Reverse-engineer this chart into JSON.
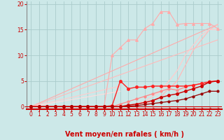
{
  "title": "",
  "xlabel": "Vent moyen/en rafales ( km/h )",
  "xlim": [
    -0.5,
    23.5
  ],
  "ylim": [
    -0.5,
    20.5
  ],
  "yticks": [
    0,
    5,
    10,
    15,
    20
  ],
  "xticks": [
    0,
    1,
    2,
    3,
    4,
    5,
    6,
    7,
    8,
    9,
    10,
    11,
    12,
    13,
    14,
    15,
    16,
    17,
    18,
    19,
    20,
    21,
    22,
    23
  ],
  "bg_color": "#cce8e8",
  "grid_color": "#aacccc",
  "axis_color": "#cc0000",
  "lines": [
    {
      "x": [
        0,
        1,
        2,
        3,
        4,
        5,
        6,
        7,
        8,
        9,
        10,
        11,
        12,
        13,
        14,
        15,
        16,
        17,
        18,
        19,
        20,
        21,
        22,
        23
      ],
      "y": [
        0,
        0,
        0,
        0,
        0,
        0,
        0,
        0,
        0,
        0,
        10,
        11.5,
        13,
        13,
        15.2,
        16.2,
        18.5,
        18.5,
        16,
        16.2,
        16.2,
        16.2,
        16.2,
        15.2
      ],
      "color": "#ffaaaa",
      "lw": 0.8,
      "marker": "^",
      "ms": 2.5,
      "zorder": 3
    },
    {
      "x": [
        0,
        1,
        2,
        3,
        4,
        5,
        6,
        7,
        8,
        9,
        10,
        11,
        12,
        13,
        14,
        15,
        16,
        17,
        18,
        19,
        20,
        21,
        22,
        23
      ],
      "y": [
        0,
        0,
        0,
        0,
        0,
        0,
        0,
        0,
        0,
        0,
        0,
        0,
        0,
        0,
        0.5,
        1,
        2,
        3.5,
        5,
        8,
        11,
        13,
        15,
        16
      ],
      "color": "#ffbbbb",
      "lw": 0.9,
      "marker": null,
      "ms": 0,
      "zorder": 2
    },
    {
      "x": [
        0,
        1,
        2,
        3,
        4,
        5,
        6,
        7,
        8,
        9,
        10,
        11,
        12,
        13,
        14,
        15,
        16,
        17,
        18,
        19,
        20,
        21,
        22,
        23
      ],
      "y": [
        0,
        0,
        0,
        0,
        0,
        0,
        0,
        0,
        0,
        0,
        0,
        0,
        0,
        0.5,
        1,
        2,
        3,
        5,
        7,
        10,
        12,
        14,
        15,
        15
      ],
      "color": "#ffcccc",
      "lw": 0.9,
      "marker": null,
      "ms": 0,
      "zorder": 2
    },
    {
      "x": [
        0,
        1,
        2,
        3,
        4,
        5,
        6,
        7,
        8,
        9,
        10,
        11,
        12,
        13,
        14,
        15,
        16,
        17,
        18,
        19,
        20,
        21,
        22,
        23
      ],
      "y": [
        0,
        0,
        0,
        0,
        0,
        0,
        0,
        0,
        0,
        0,
        0,
        0.5,
        1,
        1.5,
        2,
        2.5,
        3,
        3.5,
        3.2,
        3.8,
        4.2,
        4.5,
        5,
        5
      ],
      "color": "#ff8888",
      "lw": 0.9,
      "marker": "o",
      "ms": 2,
      "zorder": 3
    },
    {
      "x": [
        0,
        1,
        2,
        3,
        4,
        5,
        6,
        7,
        8,
        9,
        10,
        11,
        12,
        13,
        14,
        15,
        16,
        17,
        18,
        19,
        20,
        21,
        22,
        23
      ],
      "y": [
        0,
        0,
        0,
        0,
        0,
        0,
        0,
        0,
        0,
        0,
        0.2,
        5,
        3.5,
        3.8,
        3.8,
        4,
        4,
        4,
        4,
        4,
        4.2,
        4.5,
        4.8,
        5
      ],
      "color": "#ff2222",
      "lw": 1.0,
      "marker": "o",
      "ms": 2.5,
      "zorder": 4
    },
    {
      "x": [
        0,
        1,
        2,
        3,
        4,
        5,
        6,
        7,
        8,
        9,
        10,
        11,
        12,
        13,
        14,
        15,
        16,
        17,
        18,
        19,
        20,
        21,
        22,
        23
      ],
      "y": [
        0,
        0,
        0,
        0,
        0,
        0,
        0,
        0,
        0,
        0,
        0,
        0,
        0.3,
        0.5,
        0.8,
        1.2,
        1.8,
        2.2,
        2.5,
        3,
        3.5,
        4,
        4.8,
        5
      ],
      "color": "#cc0000",
      "lw": 1.0,
      "marker": "o",
      "ms": 2.5,
      "zorder": 4
    },
    {
      "x": [
        0,
        1,
        2,
        3,
        4,
        5,
        6,
        7,
        8,
        9,
        10,
        11,
        12,
        13,
        14,
        15,
        16,
        17,
        18,
        19,
        20,
        21,
        22,
        23
      ],
      "y": [
        0,
        0,
        0,
        0,
        0,
        0,
        0,
        0,
        0,
        0,
        0,
        0,
        0.1,
        0.2,
        0.4,
        0.6,
        0.8,
        1,
        1.2,
        1.5,
        2,
        2.5,
        3,
        3
      ],
      "color": "#990000",
      "lw": 0.9,
      "marker": "o",
      "ms": 2,
      "zorder": 4
    },
    {
      "x": [
        0,
        23
      ],
      "y": [
        0,
        16
      ],
      "color": "#ffaaaa",
      "lw": 0.8,
      "marker": null,
      "ms": 0,
      "zorder": 1
    },
    {
      "x": [
        0,
        23
      ],
      "y": [
        0,
        13
      ],
      "color": "#ffbbbb",
      "lw": 0.8,
      "marker": null,
      "ms": 0,
      "zorder": 1
    },
    {
      "x": [
        0,
        11
      ],
      "y": [
        0,
        4
      ],
      "color": "#ffcccc",
      "lw": 0.8,
      "marker": null,
      "ms": 0,
      "zorder": 1
    },
    {
      "x": [
        0,
        11
      ],
      "y": [
        0,
        3
      ],
      "color": "#ffdddd",
      "lw": 0.8,
      "marker": null,
      "ms": 0,
      "zorder": 1
    }
  ],
  "label_fontsize": 6,
  "tick_fontsize": 5.5,
  "xlabel_fontsize": 7
}
